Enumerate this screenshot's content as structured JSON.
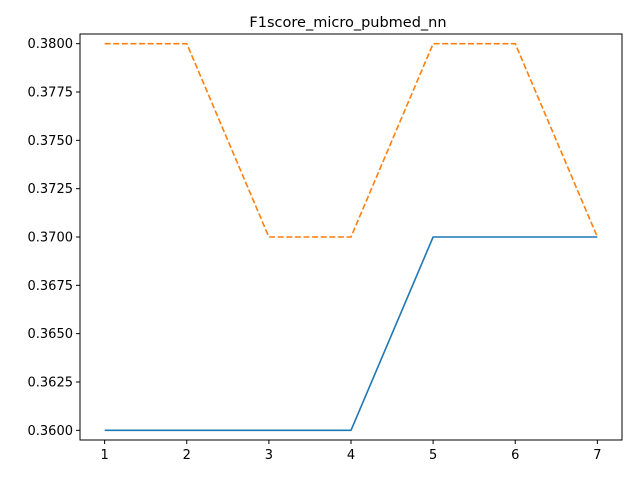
{
  "chart_data": {
    "type": "line",
    "title": "F1score_micro_pubmed_nn",
    "xlabel": "",
    "ylabel": "",
    "x": [
      1,
      2,
      3,
      4,
      5,
      6,
      7
    ],
    "xticks": [
      "1",
      "2",
      "3",
      "4",
      "5",
      "6",
      "7"
    ],
    "yticks": [
      "0.3600",
      "0.3625",
      "0.3650",
      "0.3675",
      "0.3700",
      "0.3725",
      "0.3750",
      "0.3775",
      "0.3800"
    ],
    "xlim": [
      0.7,
      7.3
    ],
    "ylim": [
      0.3595,
      0.3805
    ],
    "grid": false,
    "series": [
      {
        "values": [
          0.36,
          0.36,
          0.36,
          0.36,
          0.37,
          0.37,
          0.37
        ],
        "color": "#1f77b4",
        "style": "solid"
      },
      {
        "values": [
          0.38,
          0.38,
          0.37,
          0.37,
          0.38,
          0.38,
          0.37
        ],
        "color": "#ff7f0e",
        "style": "dashed"
      }
    ]
  }
}
